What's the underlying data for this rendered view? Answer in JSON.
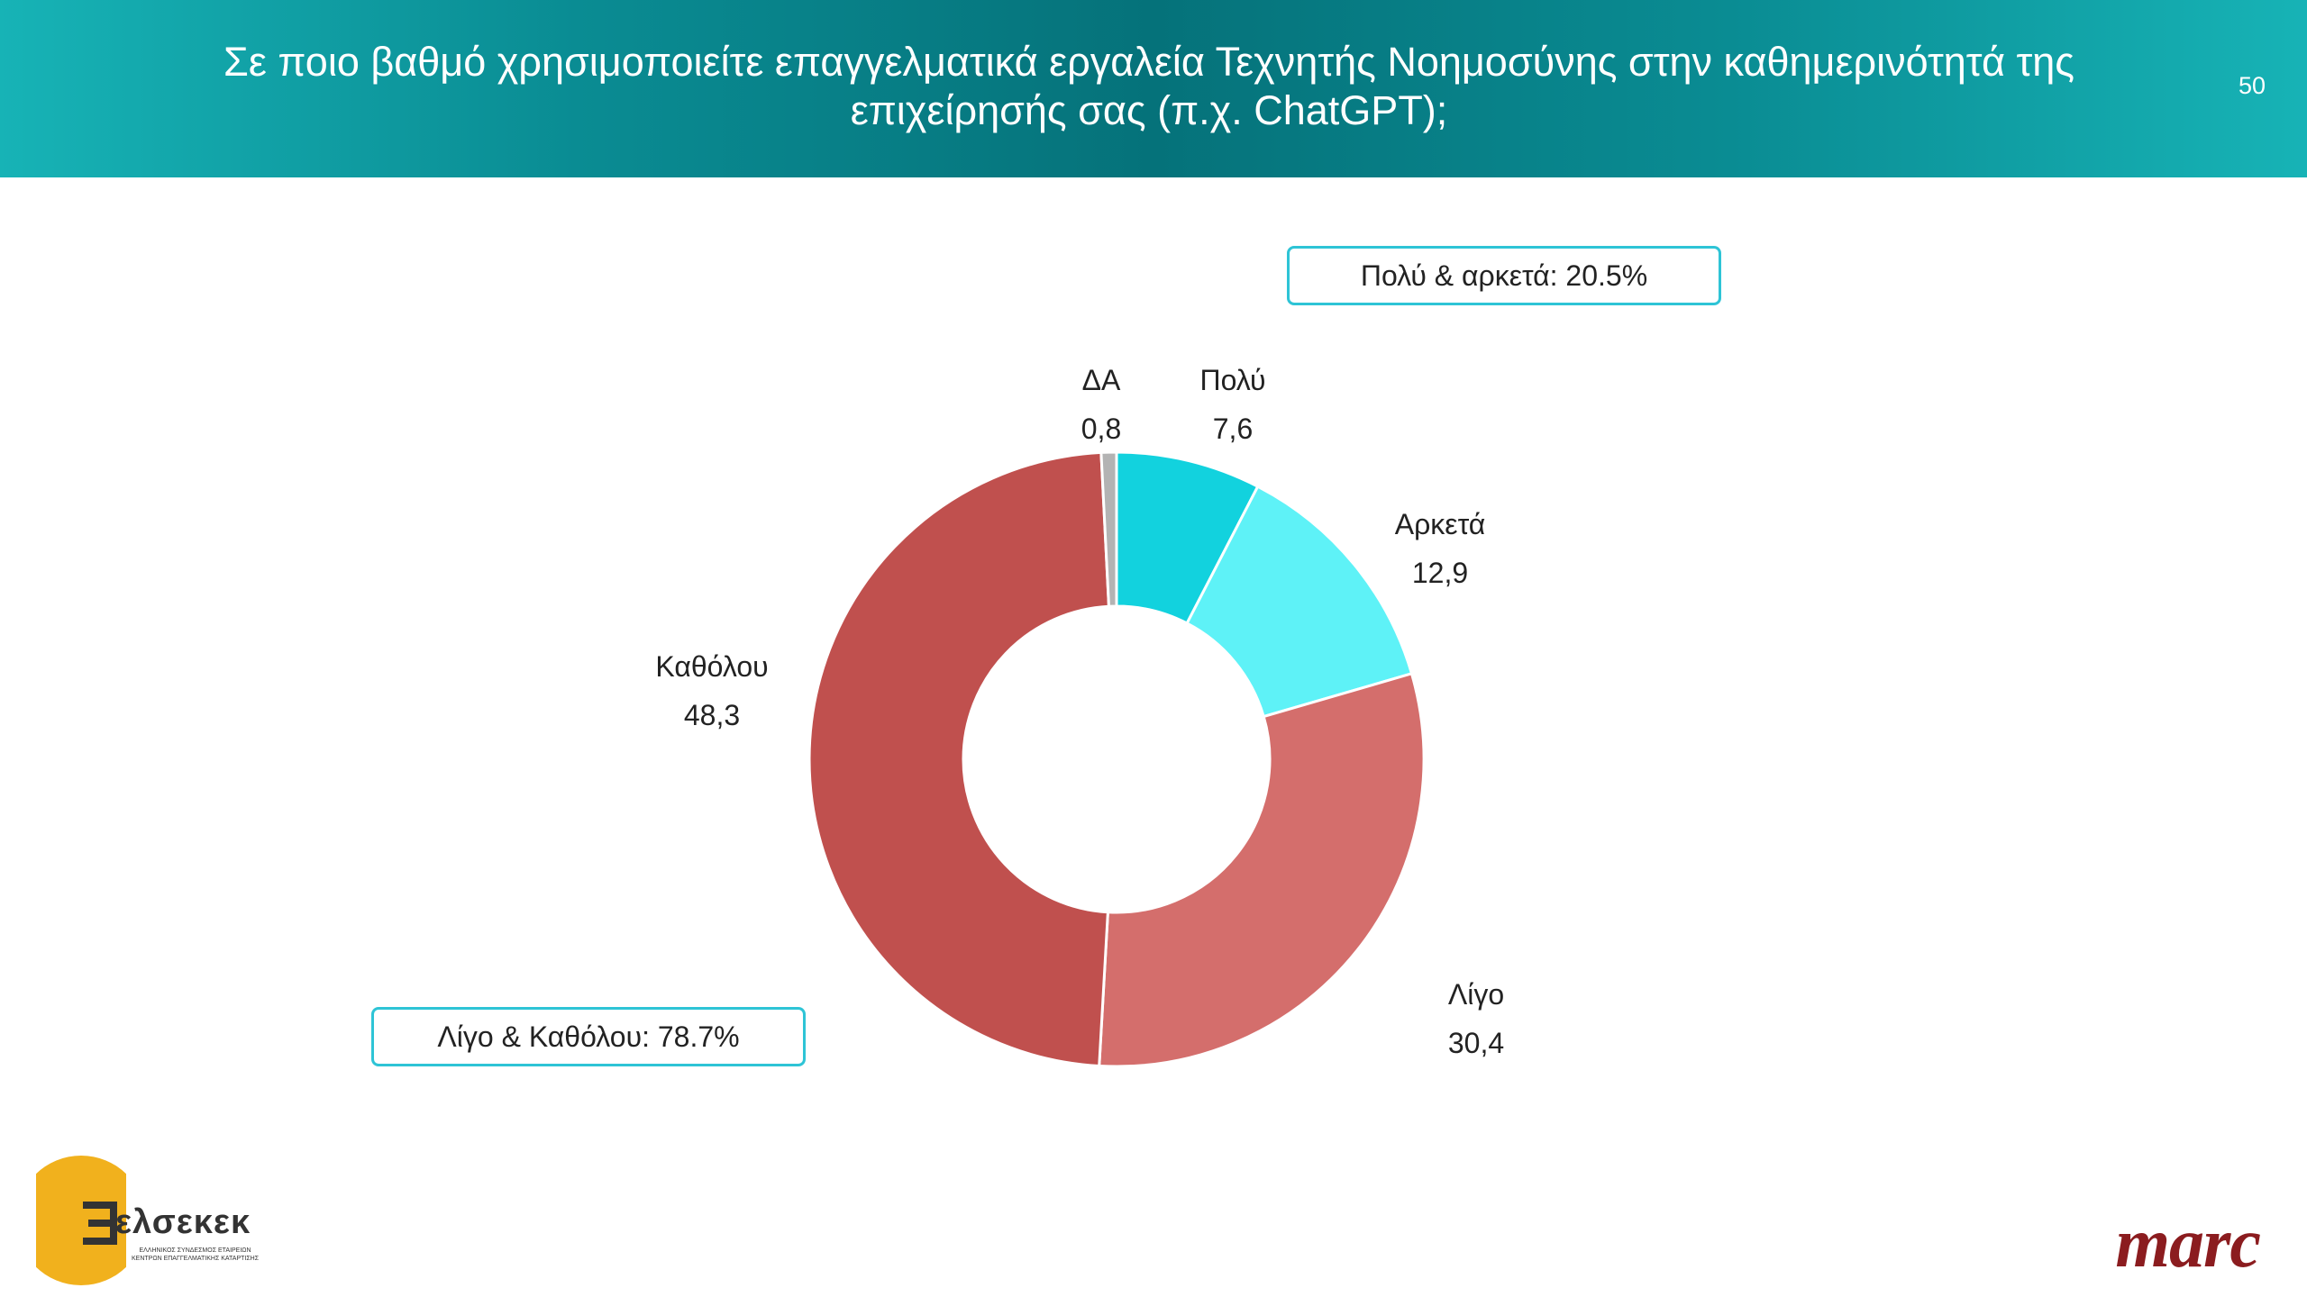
{
  "header": {
    "title": "Σε ποιο βαθμό χρησιμοποιείτε επαγγελματικά εργαλεία Τεχνητής Νοημοσύνης στην καθημερινότητά της επιχείρησής σας (π.χ. ChatGPT);",
    "page_number": "50"
  },
  "callouts": {
    "top": "Πολύ & αρκετά: 20.5%",
    "bottom": "Λίγο & Καθόλου: 78.7%"
  },
  "chart_data": {
    "type": "pie",
    "donut": true,
    "categories": [
      "Πολύ",
      "Αρκετά",
      "Λίγο",
      "Καθόλου",
      "ΔΑ"
    ],
    "values": [
      7.6,
      12.9,
      30.4,
      48.3,
      0.8
    ],
    "value_labels": [
      "7,6",
      "12,9",
      "30,4",
      "48,3",
      "0,8"
    ],
    "colors": [
      "#12d2de",
      "#5ef2f7",
      "#d46e6c",
      "#c0504e",
      "#b3b3b3"
    ]
  },
  "logos": {
    "left_name": "ελσεκεκ",
    "left_sub_1": "ΕΛΛΗΝΙΚΟΣ ΣΥΝΔΕΣΜΟΣ ΕΤΑΙΡΕΙΩΝ",
    "left_sub_2": "ΚΕΝΤΡΩΝ ΕΠΑΓΓΕΛΜΑΤΙΚΗΣ ΚΑΤΑΡΤΙΣΗΣ",
    "right_name": "marc"
  }
}
